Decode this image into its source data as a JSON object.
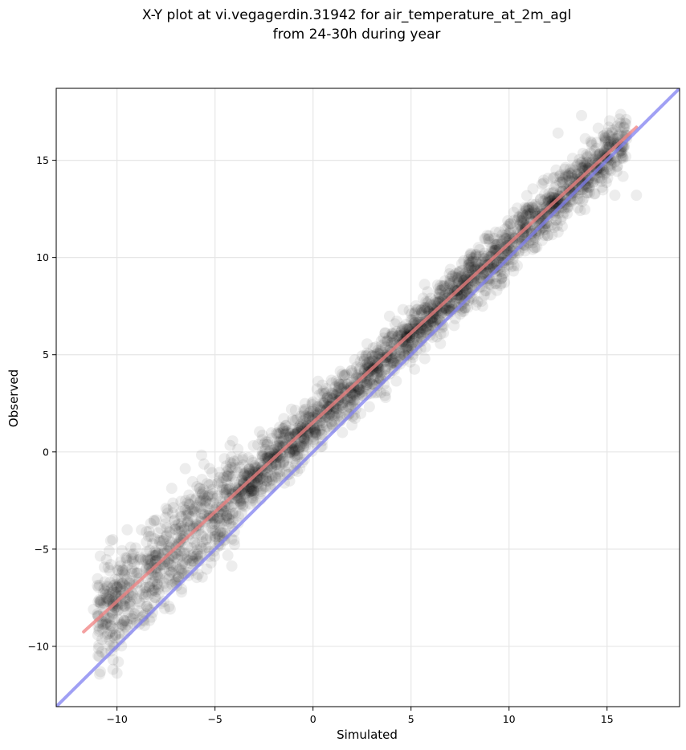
{
  "chart_data": {
    "type": "scatter",
    "title": [
      "X-Y plot at vi.vegagerdin.31942 for air_temperature_at_2m_agl",
      "from 24-30h during year"
    ],
    "xlabel": "Simulated",
    "ylabel": "Observed",
    "xlim": [
      -13.1,
      18.7
    ],
    "ylim": [
      -13.1,
      18.7
    ],
    "xticks": [
      -10,
      -5,
      0,
      5,
      10,
      15
    ],
    "yticks": [
      -10,
      -5,
      0,
      5,
      10,
      15
    ],
    "xtick_labels": [
      "−10",
      "−5",
      "0",
      "5",
      "10",
      "15"
    ],
    "ytick_labels": [
      "−10",
      "−5",
      "0",
      "5",
      "10",
      "15"
    ],
    "grid": true,
    "point_color": "#000000",
    "point_opacity": 0.07,
    "series": [
      {
        "kind": "points",
        "points": [
          [
            -11.2,
            -8.1
          ],
          [
            -10.9,
            -7.6
          ],
          [
            -10.5,
            -7.2
          ],
          [
            -10.0,
            -7.8
          ],
          [
            -9.7,
            -6.1
          ],
          [
            -9.3,
            -4.9
          ],
          [
            -9.0,
            -6.8
          ],
          [
            -8.8,
            -5.5
          ],
          [
            -8.5,
            -4.1
          ],
          [
            -8.2,
            -6.3
          ],
          [
            -8.0,
            -3.5
          ],
          [
            -7.8,
            -5.8
          ],
          [
            -7.5,
            -2.9
          ],
          [
            -7.3,
            -4.6
          ],
          [
            -7.0,
            -3.8
          ],
          [
            -6.8,
            -5.1
          ],
          [
            -6.5,
            -2.5
          ],
          [
            -6.3,
            -4.2
          ],
          [
            -6.0,
            -3.1
          ],
          [
            -5.8,
            -1.9
          ],
          [
            -5.5,
            -3.6
          ],
          [
            -5.3,
            -2.2
          ],
          [
            -5.0,
            -4.5
          ],
          [
            -4.8,
            -1.5
          ],
          [
            -4.5,
            -2.8
          ],
          [
            -4.3,
            -0.9
          ],
          [
            -4.0,
            -2.4
          ],
          [
            -3.8,
            -3.3
          ],
          [
            -3.5,
            -1.2
          ],
          [
            -3.3,
            -0.3
          ],
          [
            -3.0,
            -2.0
          ],
          [
            -2.8,
            -1.1
          ],
          [
            -2.5,
            0.4
          ],
          [
            -2.3,
            -0.8
          ],
          [
            -2.0,
            -1.7
          ],
          [
            -1.8,
            0.2
          ],
          [
            -1.5,
            -0.5
          ],
          [
            -1.3,
            1.1
          ],
          [
            -1.0,
            0.3
          ],
          [
            -0.8,
            -1.0
          ],
          [
            -0.5,
            1.6
          ],
          [
            -0.3,
            0.5
          ],
          [
            0.0,
            1.8
          ],
          [
            0.2,
            0.9
          ],
          [
            0.5,
            2.4
          ],
          [
            0.7,
            1.3
          ],
          [
            1.0,
            3.0
          ],
          [
            1.2,
            2.1
          ],
          [
            1.5,
            1.0
          ],
          [
            1.7,
            3.2
          ],
          [
            2.0,
            2.4
          ],
          [
            2.2,
            3.8
          ],
          [
            2.5,
            2.9
          ],
          [
            2.7,
            4.5
          ],
          [
            3.0,
            3.5
          ],
          [
            3.2,
            5.0
          ],
          [
            3.5,
            4.1
          ],
          [
            3.7,
            2.8
          ],
          [
            4.0,
            5.6
          ],
          [
            4.2,
            4.7
          ],
          [
            4.5,
            6.2
          ],
          [
            4.7,
            5.3
          ],
          [
            5.0,
            6.8
          ],
          [
            5.2,
            5.9
          ],
          [
            5.5,
            7.3
          ],
          [
            5.7,
            4.8
          ],
          [
            6.0,
            7.9
          ],
          [
            6.2,
            6.9
          ],
          [
            6.5,
            8.3
          ],
          [
            6.7,
            7.4
          ],
          [
            7.0,
            8.9
          ],
          [
            7.2,
            6.5
          ],
          [
            7.5,
            9.3
          ],
          [
            7.7,
            8.2
          ],
          [
            8.0,
            9.8
          ],
          [
            8.2,
            8.9
          ],
          [
            8.5,
            10.4
          ],
          [
            8.7,
            9.1
          ],
          [
            9.0,
            10.8
          ],
          [
            9.2,
            9.6
          ],
          [
            9.5,
            11.3
          ],
          [
            9.7,
            10.1
          ],
          [
            10.0,
            11.7
          ],
          [
            10.2,
            9.9
          ],
          [
            10.5,
            12.1
          ],
          [
            10.7,
            11.0
          ],
          [
            11.0,
            12.6
          ],
          [
            11.3,
            10.5
          ],
          [
            11.6,
            13.0
          ],
          [
            12.0,
            11.6
          ],
          [
            12.4,
            13.7
          ],
          [
            12.8,
            12.3
          ],
          [
            13.2,
            14.1
          ],
          [
            13.6,
            13.0
          ],
          [
            14.0,
            14.6
          ],
          [
            14.5,
            15.3
          ],
          [
            15.0,
            16.4
          ],
          [
            15.4,
            13.2
          ],
          [
            16.0,
            16.1
          ],
          [
            16.5,
            13.2
          ],
          [
            13.7,
            17.3
          ],
          [
            12.5,
            16.4
          ]
        ]
      },
      {
        "kind": "line",
        "name": "",
        "color": "#f08080",
        "points": [
          [
            -11.7,
            -9.25
          ],
          [
            16.5,
            16.7
          ]
        ]
      },
      {
        "kind": "line",
        "name": "",
        "color": "#8080f0",
        "points": [
          [
            -13.1,
            -13.1
          ],
          [
            18.7,
            18.7
          ]
        ]
      }
    ]
  }
}
